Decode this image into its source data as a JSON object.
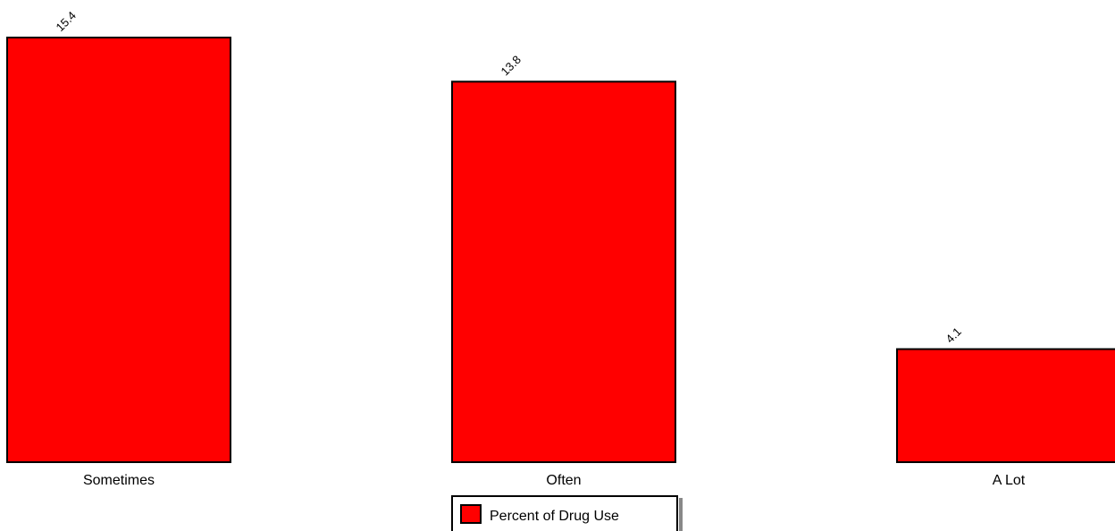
{
  "chart_data": {
    "type": "bar",
    "categories": [
      "Sometimes",
      "Often",
      "A Lot"
    ],
    "series": [
      {
        "name": "Percent of Drug Use",
        "color": "#ff0000",
        "values": [
          15.4,
          13.8,
          4.1
        ]
      }
    ],
    "legend": "bottom"
  }
}
